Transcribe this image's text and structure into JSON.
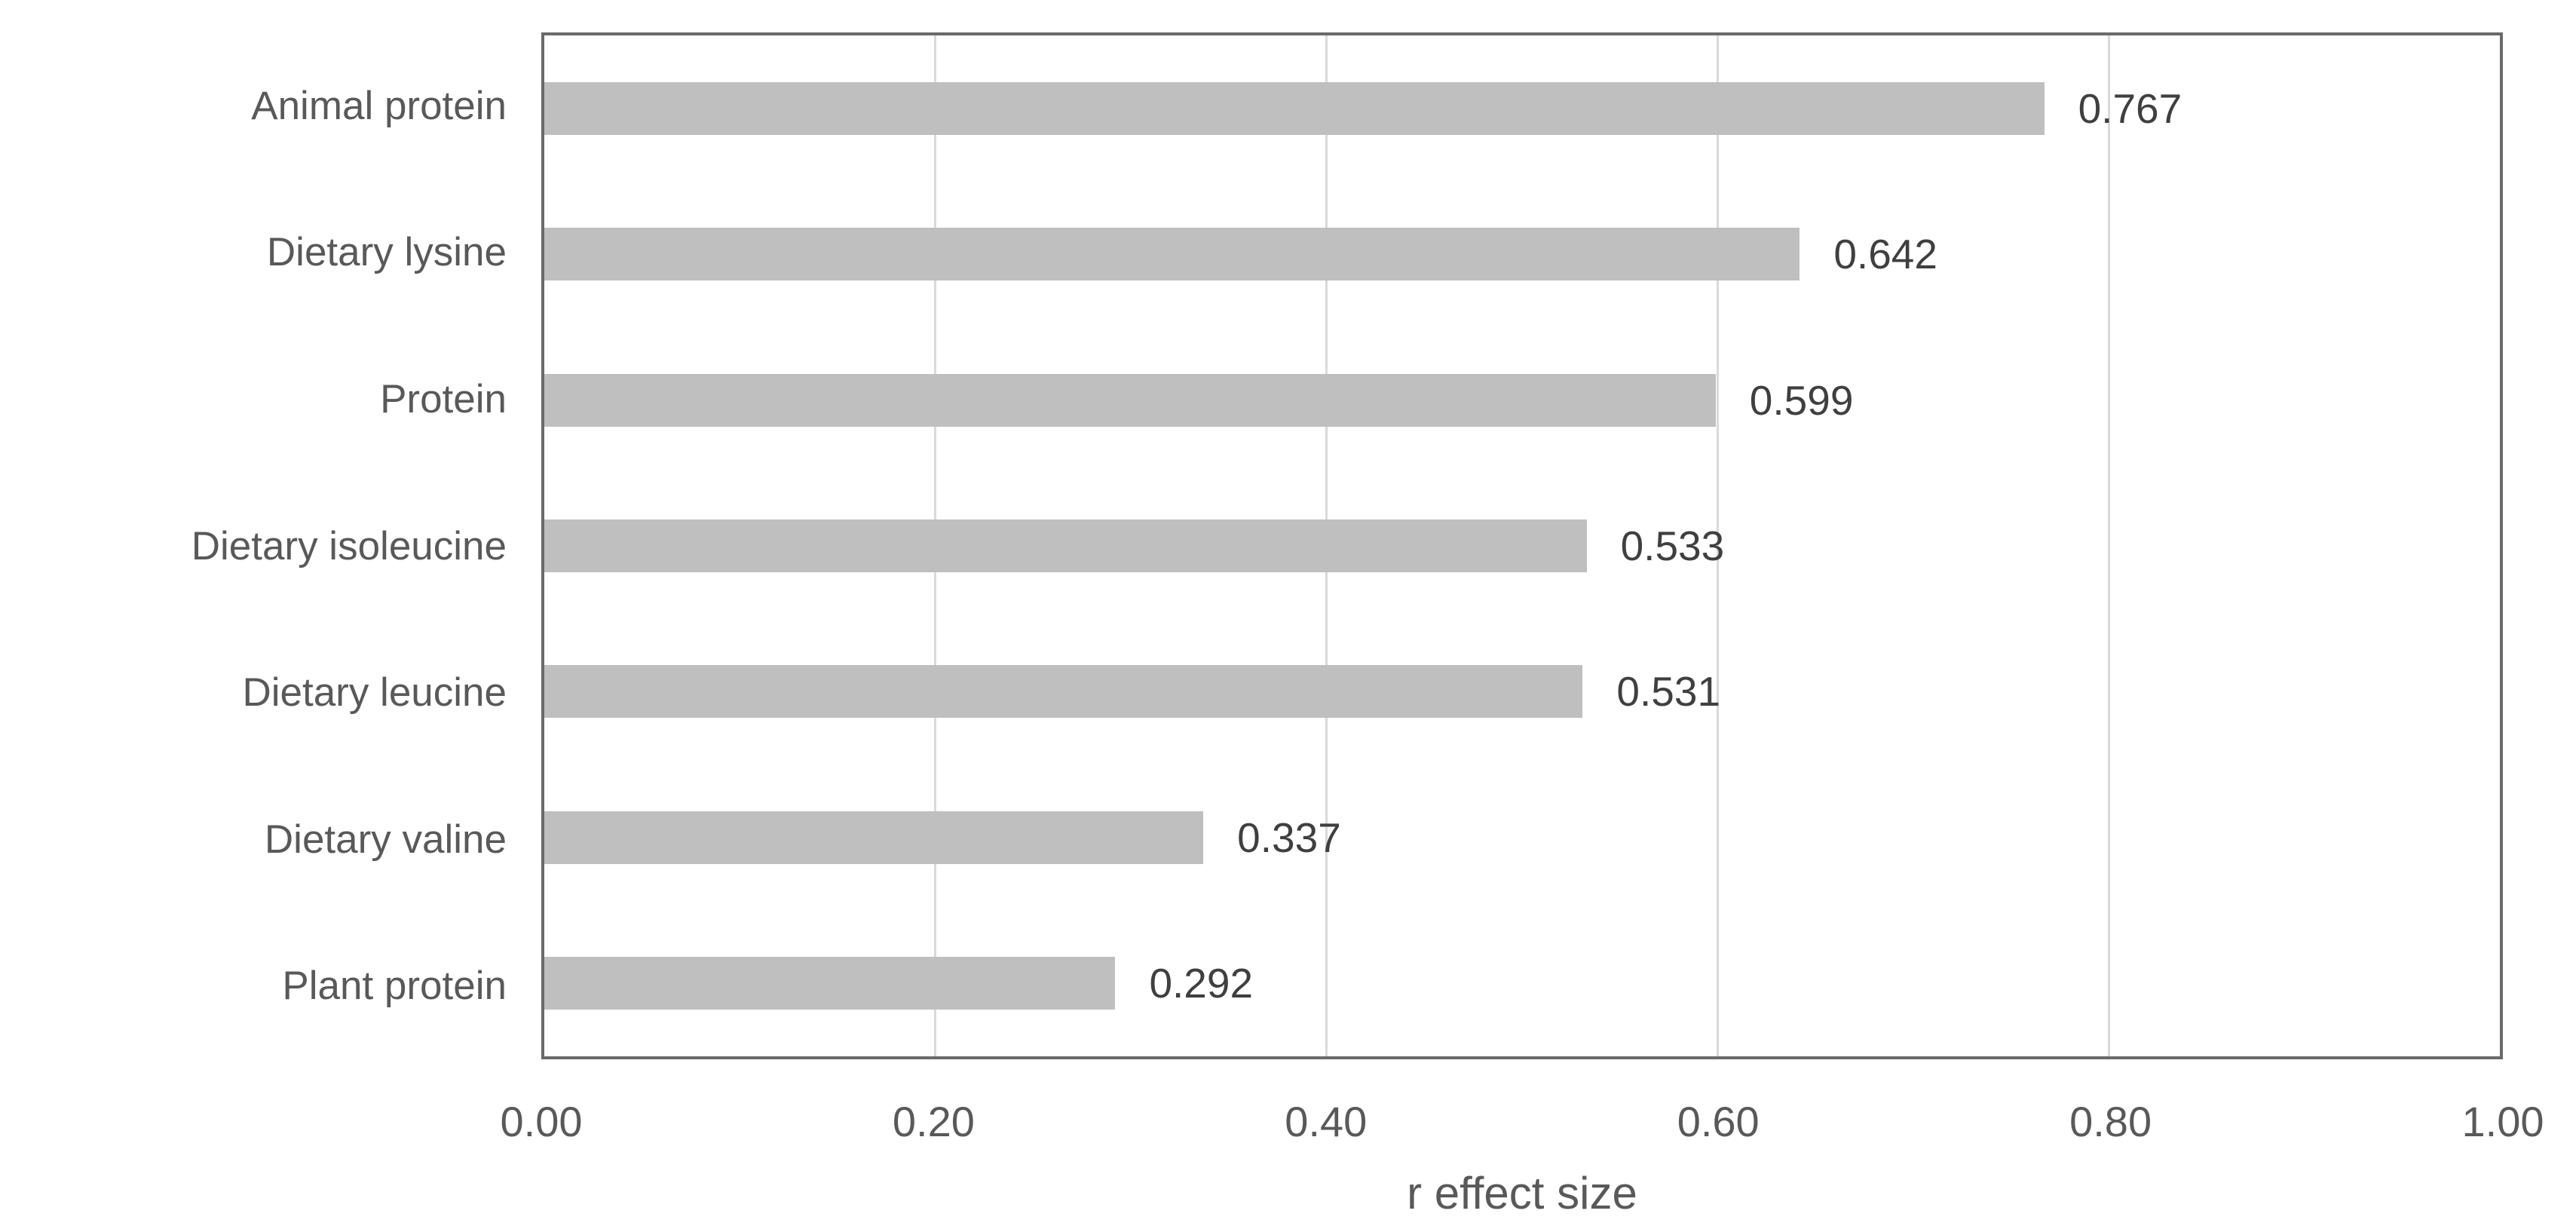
{
  "chart_data": {
    "type": "bar",
    "orientation": "horizontal",
    "title": "",
    "xlabel": "r effect size",
    "categories": [
      "Animal protein",
      "Dietary lysine",
      "Protein",
      "Dietary isoleucine",
      "Dietary leucine",
      "Dietary valine",
      "Plant protein"
    ],
    "values": [
      0.767,
      0.642,
      0.599,
      0.533,
      0.531,
      0.337,
      0.292
    ],
    "data_labels": [
      "0.767",
      "0.642",
      "0.599",
      "0.533",
      "0.531",
      "0.337",
      "0.292"
    ],
    "xlim": [
      0,
      1
    ],
    "x_ticks": [
      "0.00",
      "0.20",
      "0.40",
      "0.60",
      "0.80",
      "1.00"
    ],
    "x_tick_values": [
      0,
      0.2,
      0.4,
      0.6,
      0.8,
      1.0
    ],
    "grid": "vertical gridlines at 0.20 intervals",
    "legend": "none",
    "colors": {
      "bar": "#bfbfbf",
      "gridline": "#d9d9d9",
      "axis_border": "#6a6a6a",
      "axis_text": "#595959",
      "data_label_text": "#3f3f3f",
      "background": "#ffffff"
    }
  }
}
